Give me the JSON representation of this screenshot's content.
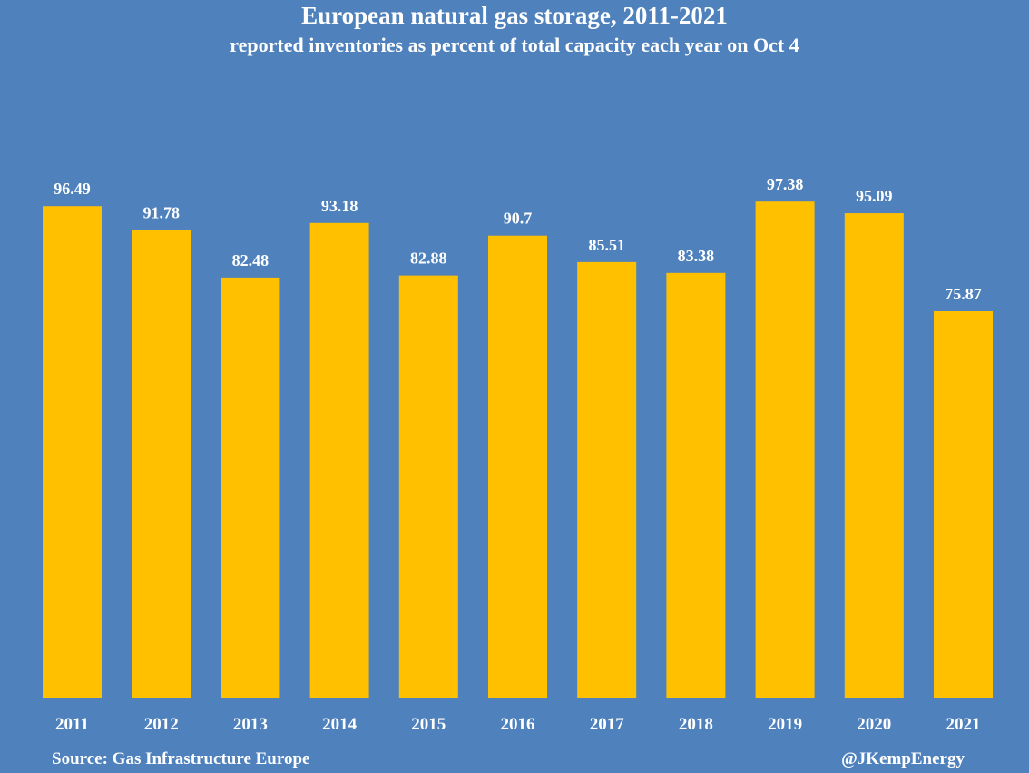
{
  "chart_data": {
    "type": "bar",
    "title": "European natural gas storage, 2011-2021",
    "subtitle": "reported inventories as percent of total capacity each year on Oct 4",
    "categories": [
      "2011",
      "2012",
      "2013",
      "2014",
      "2015",
      "2016",
      "2017",
      "2018",
      "2019",
      "2020",
      "2021"
    ],
    "values": [
      96.49,
      91.78,
      82.48,
      93.18,
      82.88,
      90.7,
      85.51,
      83.38,
      97.38,
      95.09,
      75.87
    ],
    "value_labels": [
      "96.49",
      "91.78",
      "82.48",
      "93.18",
      "82.88",
      "90.7",
      "85.51",
      "83.38",
      "97.38",
      "95.09",
      "75.87"
    ],
    "ylim": [
      0,
      100
    ],
    "grid": false,
    "legend": "none",
    "bar_color": "#ffc000",
    "background_color": "#4f81bd",
    "text_color": "#ffffff"
  },
  "footer": {
    "source": "Source: Gas Infrastructure Europe",
    "credit": "@JKempEnergy"
  }
}
